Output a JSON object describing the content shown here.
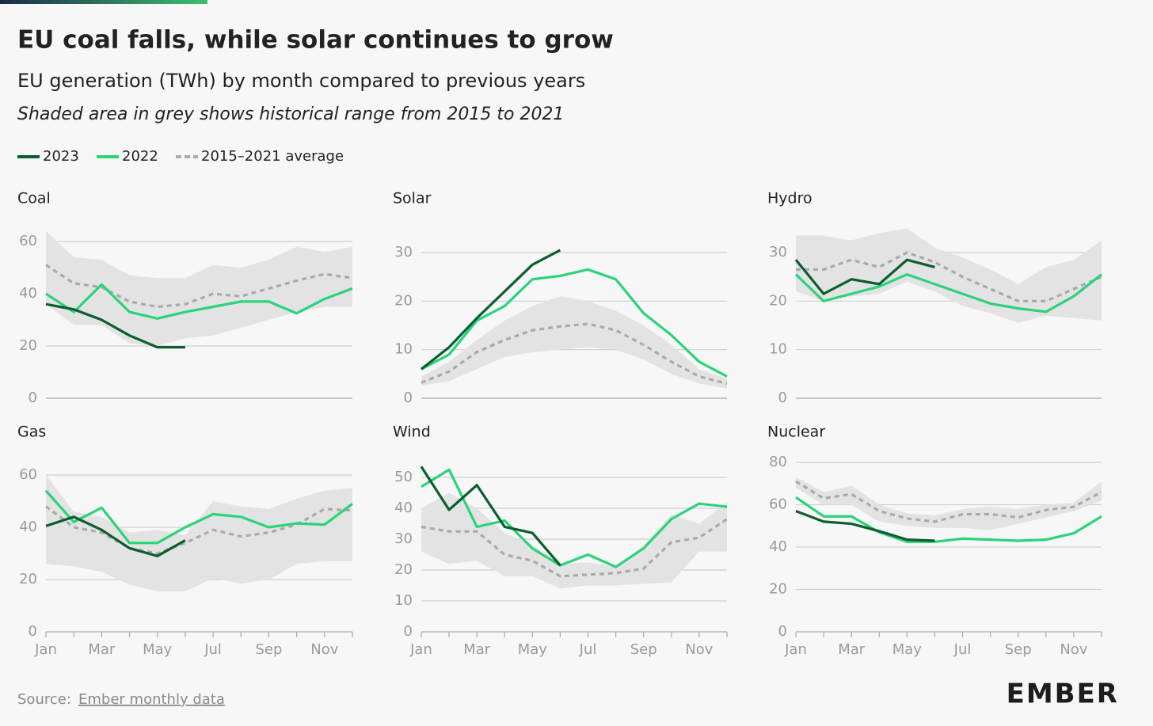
{
  "title": "EU coal falls, while solar continues to grow",
  "subtitle": "EU generation (TWh) by month compared to previous years",
  "note": "Shaded area in grey shows historical range from 2015 to 2021",
  "legend": [
    {
      "name": "2023",
      "color": "#0b5e2e"
    },
    {
      "name": "2022",
      "color": "#2bd37a"
    },
    {
      "name": "2015–2021 average",
      "color": "#aaaaaa",
      "dashed": true
    }
  ],
  "range_color": "#e3e3e3",
  "source_label": "Source:",
  "source_link": "Ember monthly data",
  "logo": "EMBER",
  "chart_data": [
    {
      "type": "line",
      "title": "Coal",
      "categories": [
        null,
        null,
        null,
        null,
        null,
        null,
        null,
        null,
        null,
        null,
        null,
        null
      ],
      "ylim": [
        0,
        60
      ],
      "yticks": [
        0,
        20,
        40,
        60
      ],
      "series": [
        {
          "values": [
            36,
            34,
            30,
            24,
            19.5,
            19.5,
            null,
            null,
            null,
            null,
            null,
            null
          ]
        },
        {
          "values": [
            40,
            33,
            43.5,
            33,
            30.5,
            33,
            35,
            37,
            37,
            32.5,
            38,
            42
          ]
        },
        {
          "values": [
            51,
            44,
            42.5,
            37,
            35,
            36,
            40,
            39,
            42,
            45,
            47.5,
            46
          ]
        }
      ],
      "range": {
        "low": [
          36,
          28,
          28,
          21,
          20,
          23,
          24,
          27,
          30,
          33,
          35,
          35
        ],
        "high": [
          64,
          54,
          53,
          47,
          46,
          46,
          51,
          50,
          53,
          58,
          56,
          58
        ]
      }
    },
    {
      "type": "line",
      "title": "Solar",
      "categories": [
        null,
        null,
        null,
        null,
        null,
        null,
        null,
        null,
        null,
        null,
        null,
        null
      ],
      "ylim": [
        0,
        30
      ],
      "yticks": [
        0,
        10,
        20,
        30
      ],
      "series": [
        {
          "values": [
            6,
            10.5,
            16.5,
            22,
            27.5,
            30.5,
            null,
            null,
            null,
            null,
            null,
            null
          ]
        },
        {
          "values": [
            6,
            9,
            16,
            19,
            24.5,
            25.2,
            26.5,
            24.5,
            17.5,
            13,
            7.5,
            4.5
          ]
        },
        {
          "values": [
            3.2,
            5.5,
            9.5,
            12,
            14,
            14.8,
            15.3,
            14,
            11,
            7.5,
            4.5,
            3
          ]
        }
      ],
      "range": {
        "low": [
          2.5,
          3.5,
          6,
          8.5,
          9.5,
          10,
          10.5,
          10,
          8,
          5,
          3,
          2
        ],
        "high": [
          4.5,
          7.5,
          12,
          16,
          19,
          21,
          20,
          18,
          15,
          11,
          6,
          4
        ]
      }
    },
    {
      "type": "line",
      "title": "Hydro",
      "categories": [
        null,
        null,
        null,
        null,
        null,
        null,
        null,
        null,
        null,
        null,
        null,
        null
      ],
      "ylim": [
        0,
        30
      ],
      "yticks": [
        0,
        10,
        20,
        30
      ],
      "series": [
        {
          "values": [
            28.5,
            21.5,
            24.5,
            23.5,
            28.5,
            27,
            null,
            null,
            null,
            null,
            null,
            null
          ]
        },
        {
          "values": [
            25.5,
            20,
            21.5,
            23,
            25.5,
            23.5,
            21.5,
            19.5,
            18.5,
            17.8,
            21,
            25.5
          ]
        },
        {
          "values": [
            26.5,
            26.5,
            28.5,
            27,
            30,
            28,
            25,
            22.5,
            20,
            20,
            22.5,
            25
          ]
        }
      ],
      "range": {
        "low": [
          22,
          20,
          21,
          21.5,
          24,
          22,
          19,
          17.5,
          15.5,
          17,
          16.5,
          16
        ],
        "high": [
          33.5,
          33.5,
          32.5,
          34,
          35,
          31,
          29,
          26.5,
          23.5,
          27,
          28.5,
          32.5
        ]
      }
    },
    {
      "type": "line",
      "title": "Gas",
      "categories": [
        "Jan",
        null,
        "Mar",
        null,
        "May",
        null,
        "Jul",
        null,
        "Sep",
        null,
        "Nov",
        null
      ],
      "ylim": [
        0,
        60
      ],
      "yticks": [
        0,
        20,
        40,
        60
      ],
      "series": [
        {
          "values": [
            40.5,
            44,
            39,
            32,
            29,
            35,
            null,
            null,
            null,
            null,
            null,
            null
          ]
        },
        {
          "values": [
            54,
            42,
            47.5,
            34,
            34,
            40,
            45,
            44,
            40,
            41.5,
            41,
            49
          ]
        },
        {
          "values": [
            48,
            40,
            38,
            32,
            30,
            34,
            39,
            36.5,
            38,
            41,
            47,
            46.5
          ]
        }
      ],
      "range": {
        "low": [
          26,
          25,
          23,
          18,
          15.5,
          15.5,
          20.5,
          18.5,
          20,
          26,
          27,
          27
        ],
        "high": [
          60,
          46,
          44,
          38,
          39,
          37,
          50,
          48,
          47,
          51,
          54,
          55
        ]
      }
    },
    {
      "type": "line",
      "title": "Wind",
      "categories": [
        "Jan",
        null,
        "Mar",
        null,
        "May",
        null,
        "Jul",
        null,
        "Sep",
        null,
        "Nov",
        null
      ],
      "ylim": [
        0,
        50
      ],
      "yticks": [
        0,
        10,
        20,
        30,
        40,
        50
      ],
      "series": [
        {
          "values": [
            53.5,
            39.5,
            47.5,
            34,
            32,
            21.5,
            null,
            null,
            null,
            null,
            null,
            null
          ]
        },
        {
          "values": [
            47,
            52.5,
            34,
            36,
            27,
            21.5,
            25,
            21,
            27,
            36.5,
            41.5,
            40.5
          ]
        },
        {
          "values": [
            34,
            32.5,
            32.5,
            25,
            23,
            18,
            18.5,
            19,
            20.5,
            29,
            30.5,
            36.5
          ]
        }
      ],
      "range": {
        "low": [
          26,
          22,
          23,
          18,
          18,
          14,
          15,
          15,
          15.5,
          16,
          26,
          26
        ],
        "high": [
          40,
          45,
          40,
          32,
          28,
          22,
          22.5,
          21,
          28,
          38,
          35,
          42
        ]
      }
    },
    {
      "type": "line",
      "title": "Nuclear",
      "categories": [
        "Jan",
        null,
        "Mar",
        null,
        "May",
        null,
        "Jul",
        null,
        "Sep",
        null,
        "Nov",
        null
      ],
      "ylim": [
        0,
        80
      ],
      "yticks": [
        0,
        20,
        40,
        60,
        80
      ],
      "series": [
        {
          "values": [
            57,
            52,
            51,
            47.5,
            43.5,
            43,
            null,
            null,
            null,
            null,
            null,
            null
          ]
        },
        {
          "values": [
            63.5,
            54.5,
            54.5,
            47,
            42.5,
            42.5,
            44,
            43.5,
            43,
            43.5,
            46.5,
            54.5
          ]
        },
        {
          "values": [
            71,
            63,
            65,
            57,
            53.5,
            52,
            55.5,
            55.5,
            54,
            57.5,
            59,
            66
          ]
        }
      ],
      "range": {
        "low": [
          68,
          60,
          60,
          52,
          50,
          49,
          49,
          48,
          51,
          54,
          57,
          62
        ],
        "high": [
          73,
          66,
          69,
          60,
          56,
          55,
          58,
          59,
          58,
          60,
          61,
          71
        ]
      }
    }
  ]
}
